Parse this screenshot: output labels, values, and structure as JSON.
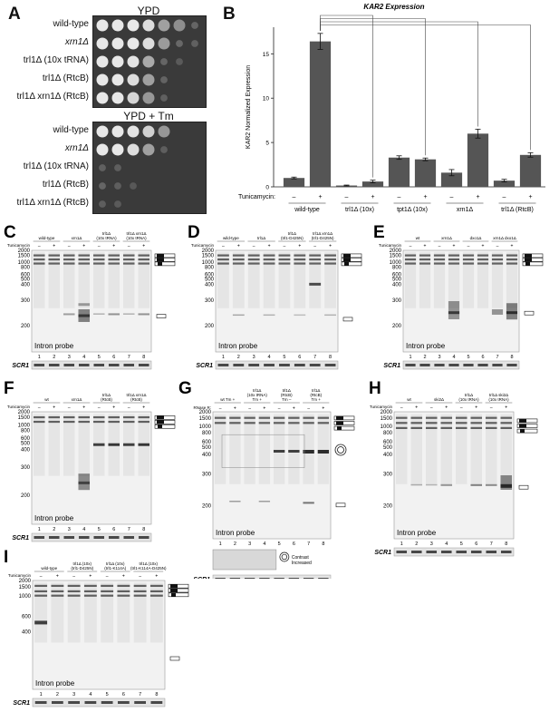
{
  "panel_a": {
    "letter": "A",
    "plate1_title": "YPD",
    "plate2_title": "YPD + Tm",
    "strains": [
      "wild-type",
      "xrn1Δ",
      "trl1Δ (10x tRNA)",
      "trl1Δ (RtcB)",
      "trl1Δ xrn1Δ (RtcB)"
    ]
  },
  "panel_b": {
    "letter": "B"
  },
  "chart_data": {
    "type": "bar",
    "title": "KAR2 Expression",
    "ylabel": "KAR2 Normalized Expression",
    "ylim": [
      0,
      18
    ],
    "yticks": [
      0,
      5,
      10,
      15
    ],
    "treatment_label": "Tunicamycin:",
    "treatment_marks": [
      "–",
      "+",
      "–",
      "+",
      "–",
      "+",
      "–",
      "+",
      "–",
      "+"
    ],
    "groups": [
      "wild-type",
      "trl1Δ (10x)",
      "tpt1Δ (10x)",
      "xrn1Δ",
      "trl1Δ (RtcB)"
    ],
    "values": [
      1.0,
      16.4,
      0.15,
      0.6,
      3.3,
      3.1,
      1.6,
      6.0,
      0.7,
      3.6
    ],
    "errors": [
      0.1,
      0.9,
      0.05,
      0.15,
      0.2,
      0.15,
      0.35,
      0.5,
      0.15,
      0.25
    ],
    "bar_color": "#555555",
    "grid": false
  },
  "blot_probe": "Intron probe",
  "scr1_label": "SCR1",
  "tunicamycin_label": "Tunicamycin",
  "lane_numbers": [
    "1",
    "2",
    "3",
    "4",
    "5",
    "6",
    "7",
    "8"
  ],
  "lane_marks": [
    "–",
    "+",
    "–",
    "+",
    "–",
    "+",
    "–",
    "+"
  ],
  "panel_c": {
    "letter": "C",
    "groups": [
      "wild-type",
      "xrn1Δ",
      "trl1Δ (10x tRNA)",
      "trl1Δ xrn1Δ (10x tRNA)"
    ],
    "mw": [
      "2000",
      "1500",
      "1000",
      "800",
      "600",
      "500",
      "400",
      "300",
      "200"
    ]
  },
  "panel_d": {
    "letter": "D",
    "groups": [
      "wild-type",
      "trl1Δ",
      "trl1Δ (trl1-D425N)",
      "trl1Δ xrn1Δ (trl1-D425N)"
    ],
    "mw": [
      "2000",
      "1500",
      "1000",
      "800",
      "600",
      "500",
      "400",
      "300",
      "200"
    ]
  },
  "panel_e": {
    "letter": "E",
    "groups": [
      "wt",
      "xrn1Δ",
      "dxo1Δ",
      "xrn1Δ dxo1Δ"
    ],
    "mw": [
      "2000",
      "1500",
      "1000",
      "800",
      "600",
      "500",
      "400",
      "300",
      "200"
    ]
  },
  "panel_f": {
    "letter": "F",
    "groups": [
      "wt",
      "xrn1Δ",
      "trl1Δ (RtcB)",
      "trl1Δ xrn1Δ (RtcB)"
    ],
    "mw": [
      "2000",
      "1500",
      "1000",
      "800",
      "600",
      "500",
      "400",
      "300",
      "200"
    ]
  },
  "panel_g": {
    "letter": "G",
    "rnase_label": "RNase R:",
    "groups": [
      "wt Tm +",
      "trl1Δ (10x tRNA) Tm +",
      "trl1Δ (RtcB) Tm –",
      "trl1Δ (RtcB) Tm +"
    ],
    "mw": [
      "2000",
      "1500",
      "1000",
      "800",
      "600",
      "500",
      "400",
      "300",
      "200"
    ],
    "contrast_label": "Contrast Increased"
  },
  "panel_h": {
    "letter": "H",
    "groups": [
      "wt",
      "ski2Δ",
      "trl1Δ (10x tRNA)",
      "trl1Δ ski2Δ (10x tRNA)"
    ],
    "mw": [
      "2000",
      "1500",
      "1000",
      "800",
      "600",
      "500",
      "400",
      "300",
      "200"
    ]
  },
  "panel_i": {
    "letter": "I",
    "groups": [
      "wild-type",
      "trl1Δ (10x) (trl1-D425N)",
      "trl1Δ (10x) (trl1-K114A)",
      "trl1Δ (10x) (trl1-K114A-D425N)"
    ],
    "mw": [
      "2000",
      "1500",
      "1000",
      "600",
      "400"
    ]
  }
}
